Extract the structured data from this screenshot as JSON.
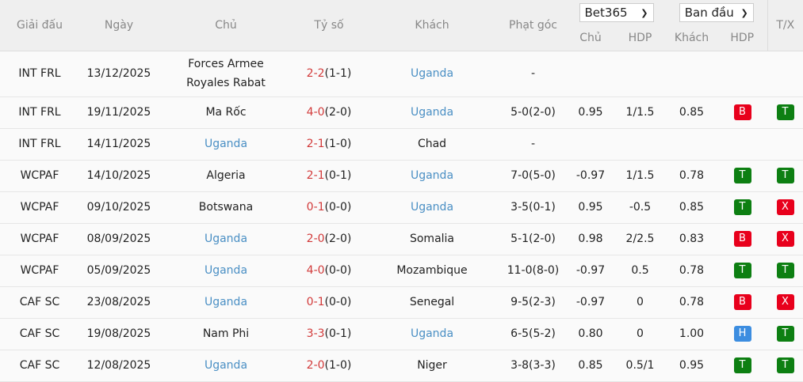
{
  "header": {
    "league": "Giải đấu",
    "date": "Ngày",
    "home": "Chủ",
    "score": "Tỷ số",
    "away": "Khách",
    "corner": "Phạt góc",
    "bookmaker": "Bet365",
    "odds_type": "Ban đầu",
    "sub_home": "Chủ",
    "sub_hdp": "HDP",
    "sub_away": "Khách",
    "sub_hdp2": "HDP",
    "tx": "T/X"
  },
  "colors": {
    "team_link": "#4a8fc4",
    "score_red": "#d23a3a",
    "badge_red": "#e8001c",
    "badge_green": "#0d7f12",
    "badge_blue": "#3c8de0"
  },
  "rows": [
    {
      "league": "INT FRL",
      "date": "13/12/2025",
      "home": "Forces Armee Royales Rabat",
      "home_link": false,
      "ft": "2-2",
      "ht": "(1-1)",
      "away": "Uganda",
      "away_link": true,
      "corner": "-",
      "h": "",
      "hdp": "",
      "a": "",
      "r": "",
      "tx": ""
    },
    {
      "league": "INT FRL",
      "date": "19/11/2025",
      "home": "Ma Rốc",
      "home_link": false,
      "ft": "4-0",
      "ht": "(2-0)",
      "away": "Uganda",
      "away_link": true,
      "corner": "5-0(2-0)",
      "h": "0.95",
      "hdp": "1/1.5",
      "a": "0.85",
      "r": "B",
      "tx": "T"
    },
    {
      "league": "INT FRL",
      "date": "14/11/2025",
      "home": "Uganda",
      "home_link": true,
      "ft": "2-1",
      "ht": "(1-0)",
      "away": "Chad",
      "away_link": false,
      "corner": "-",
      "h": "",
      "hdp": "",
      "a": "",
      "r": "",
      "tx": ""
    },
    {
      "league": "WCPAF",
      "date": "14/10/2025",
      "home": "Algeria",
      "home_link": false,
      "ft": "2-1",
      "ht": "(0-1)",
      "away": "Uganda",
      "away_link": true,
      "corner": "7-0(5-0)",
      "h": "-0.97",
      "hdp": "1/1.5",
      "a": "0.78",
      "r": "T",
      "tx": "T"
    },
    {
      "league": "WCPAF",
      "date": "09/10/2025",
      "home": "Botswana",
      "home_link": false,
      "ft": "0-1",
      "ht": "(0-0)",
      "away": "Uganda",
      "away_link": true,
      "corner": "3-5(0-1)",
      "h": "0.95",
      "hdp": "-0.5",
      "a": "0.85",
      "r": "T",
      "tx": "X"
    },
    {
      "league": "WCPAF",
      "date": "08/09/2025",
      "home": "Uganda",
      "home_link": true,
      "ft": "2-0",
      "ht": "(2-0)",
      "away": "Somalia",
      "away_link": false,
      "corner": "5-1(2-0)",
      "h": "0.98",
      "hdp": "2/2.5",
      "a": "0.83",
      "r": "B",
      "tx": "X"
    },
    {
      "league": "WCPAF",
      "date": "05/09/2025",
      "home": "Uganda",
      "home_link": true,
      "ft": "4-0",
      "ht": "(0-0)",
      "away": "Mozambique",
      "away_link": false,
      "corner": "11-0(8-0)",
      "h": "-0.97",
      "hdp": "0.5",
      "a": "0.78",
      "r": "T",
      "tx": "T"
    },
    {
      "league": "CAF SC",
      "date": "23/08/2025",
      "home": "Uganda",
      "home_link": true,
      "ft": "0-1",
      "ht": "(0-0)",
      "away": "Senegal",
      "away_link": false,
      "corner": "9-5(2-3)",
      "h": "-0.97",
      "hdp": "0",
      "a": "0.78",
      "r": "B",
      "tx": "X"
    },
    {
      "league": "CAF SC",
      "date": "19/08/2025",
      "home": "Nam Phi",
      "home_link": false,
      "ft": "3-3",
      "ht": "(0-1)",
      "away": "Uganda",
      "away_link": true,
      "corner": "6-5(5-2)",
      "h": "0.80",
      "hdp": "0",
      "a": "1.00",
      "r": "H",
      "tx": "T"
    },
    {
      "league": "CAF SC",
      "date": "12/08/2025",
      "home": "Uganda",
      "home_link": true,
      "ft": "2-0",
      "ht": "(1-0)",
      "away": "Niger",
      "away_link": false,
      "corner": "3-8(3-3)",
      "h": "0.85",
      "hdp": "0.5/1",
      "a": "0.95",
      "r": "T",
      "tx": "T"
    }
  ]
}
